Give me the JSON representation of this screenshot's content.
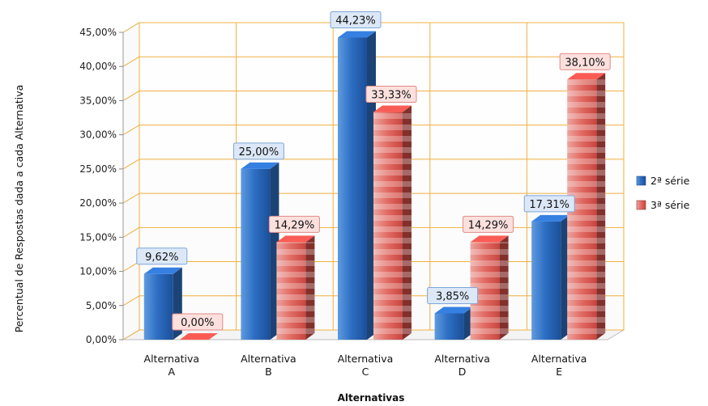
{
  "chart_data": {
    "type": "bar",
    "title": "",
    "xlabel": "Alternativas",
    "ylabel": "Percentual de Respostas dada a cada Alternativa",
    "ylim": [
      0,
      45
    ],
    "yticks": [
      "0,00%",
      "5,00%",
      "10,00%",
      "15,00%",
      "20,00%",
      "25,00%",
      "30,00%",
      "35,00%",
      "40,00%",
      "45,00%"
    ],
    "categories": [
      [
        "Alternativa",
        "A"
      ],
      [
        "Alternativa",
        "B"
      ],
      [
        "Alternativa",
        "C"
      ],
      [
        "Alternativa",
        "D"
      ],
      [
        "Alternativa",
        "E"
      ]
    ],
    "series": [
      {
        "name": "2ª série",
        "values": [
          9.62,
          25.0,
          44.23,
          3.85,
          17.31
        ],
        "labels": [
          "9,62%",
          "25,00%",
          "44,23%",
          "3,85%",
          "17,31%"
        ],
        "color": "#2e6fc4"
      },
      {
        "name": "3ª série",
        "values": [
          0.0,
          14.29,
          33.33,
          14.29,
          38.1
        ],
        "labels": [
          "0,00%",
          "14,29%",
          "33,33%",
          "14,29%",
          "38,10%"
        ],
        "color": "#d9504a"
      }
    ],
    "grid": true,
    "gridColor": "#f0b040",
    "legend": "right",
    "perspective": "3d"
  }
}
